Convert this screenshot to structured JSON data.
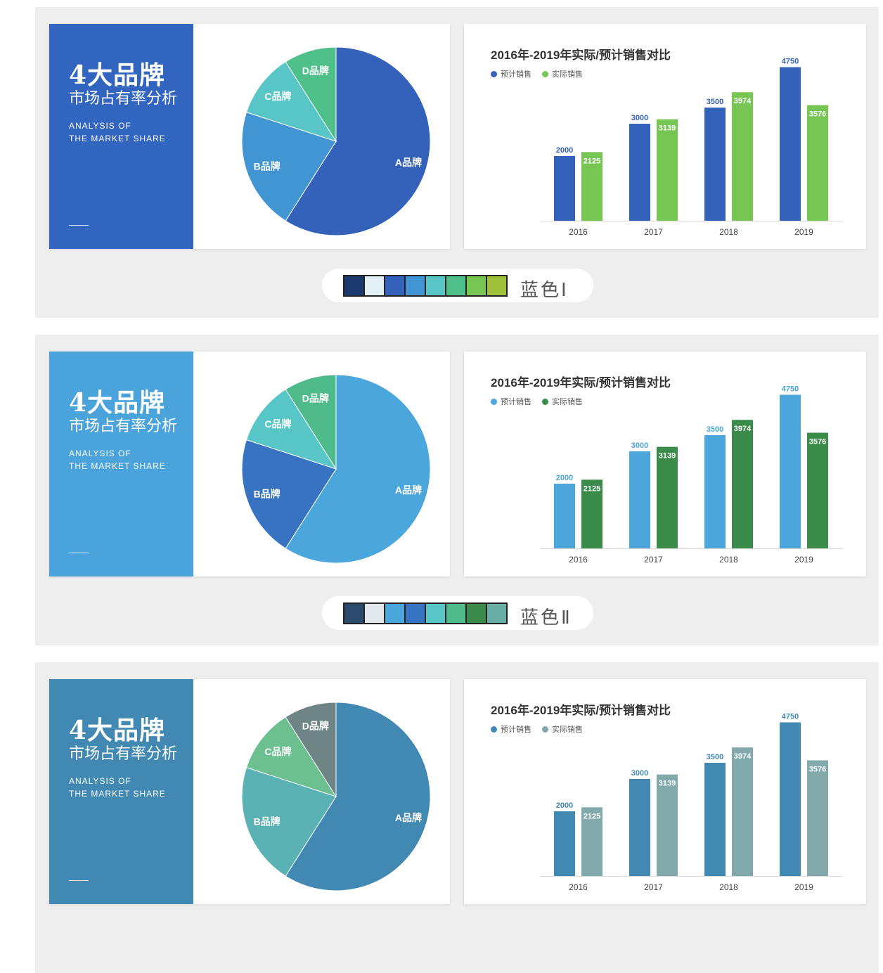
{
  "sections": [
    {
      "theme": {
        "title_bg": "#3265c0",
        "pie_colors": [
          "#3462bb",
          "#4195d3",
          "#58c6c6",
          "#50c08a"
        ],
        "bar_colors": [
          "#3462bb",
          "#77c553"
        ]
      },
      "title": {
        "main": "4大品牌",
        "sub": "市场占有率分析",
        "en_line1": "ANALYSIS OF",
        "en_line2": "THE MARKET SHARE"
      },
      "swatch_label": "蓝色Ⅰ",
      "swatches": [
        "#1d3a6e",
        "#e2f0f6",
        "#3462bb",
        "#4195d3",
        "#58c6c6",
        "#50c08a",
        "#77c553",
        "#a0c23b"
      ]
    },
    {
      "theme": {
        "title_bg": "#4aa3db",
        "pie_colors": [
          "#4aa6db",
          "#3873c2",
          "#58c6c6",
          "#4fba8a"
        ],
        "bar_colors": [
          "#4aa6db",
          "#3b8b4b"
        ]
      },
      "title": {
        "main": "4大品牌",
        "sub": "市场占有率分析",
        "en_line1": "ANALYSIS OF",
        "en_line2": "THE MARKET SHARE"
      },
      "swatch_label": "蓝色Ⅱ",
      "swatches": [
        "#2c4a6b",
        "#e2e8ec",
        "#4aa6db",
        "#3873c2",
        "#58c6c6",
        "#4fba8a",
        "#3b8b4b",
        "#6aaea8"
      ]
    },
    {
      "theme": {
        "title_bg": "#4189b3",
        "pie_colors": [
          "#4189b3",
          "#5ab2b4",
          "#6cc090",
          "#6f8585"
        ],
        "bar_colors": [
          "#4189b3",
          "#82aaad"
        ]
      },
      "title": {
        "main": "4大品牌",
        "sub": "市场占有率分析",
        "en_line1": "ANALYSIS OF",
        "en_line2": "THE MARKET SHARE"
      },
      "swatch_label": "",
      "swatches": []
    }
  ],
  "chart_data": [
    {
      "type": "pie",
      "categories": [
        "A品牌",
        "B品牌",
        "C品牌",
        "D品牌"
      ],
      "values": [
        59,
        21,
        11,
        9
      ]
    },
    {
      "type": "bar",
      "title": "2016年-2019年实际/预计销售对比",
      "categories": [
        "2016",
        "2017",
        "2018",
        "2019"
      ],
      "series": [
        {
          "name": "预计销售",
          "values": [
            2000,
            3000,
            3500,
            4750
          ]
        },
        {
          "name": "实际销售",
          "values": [
            2125,
            3139,
            3974,
            3576
          ]
        }
      ],
      "ylim": [
        0,
        5000
      ],
      "legend": "top-left",
      "grid": false
    }
  ]
}
